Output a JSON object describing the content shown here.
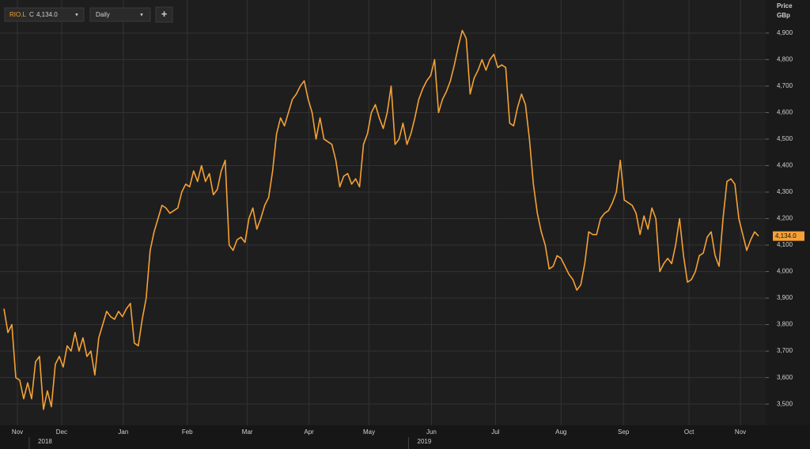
{
  "toolbar": {
    "symbol": "RIO.L",
    "field": "C",
    "interval": "Daily",
    "add": "+"
  },
  "chart_data": {
    "type": "line",
    "y_axis_title": "Price",
    "y_axis_unit": "GBp",
    "last_value_label": "4,134.0",
    "series": [
      {
        "name": "RIO.L",
        "color": "#f5a135",
        "values": [
          3860,
          3770,
          3800,
          3600,
          3590,
          3520,
          3580,
          3520,
          3660,
          3680,
          3480,
          3550,
          3490,
          3650,
          3680,
          3640,
          3720,
          3700,
          3770,
          3700,
          3750,
          3680,
          3700,
          3610,
          3750,
          3800,
          3850,
          3830,
          3820,
          3850,
          3830,
          3860,
          3880,
          3730,
          3720,
          3820,
          3900,
          4080,
          4150,
          4200,
          4250,
          4240,
          4220,
          4230,
          4240,
          4300,
          4330,
          4320,
          4380,
          4340,
          4400,
          4340,
          4370,
          4290,
          4310,
          4380,
          4420,
          4100,
          4080,
          4120,
          4130,
          4110,
          4200,
          4240,
          4160,
          4200,
          4250,
          4280,
          4380,
          4520,
          4580,
          4550,
          4600,
          4650,
          4670,
          4700,
          4720,
          4650,
          4600,
          4500,
          4580,
          4500,
          4490,
          4480,
          4420,
          4320,
          4360,
          4370,
          4330,
          4350,
          4320,
          4480,
          4520,
          4600,
          4630,
          4580,
          4540,
          4600,
          4700,
          4480,
          4500,
          4560,
          4480,
          4520,
          4580,
          4650,
          4690,
          4720,
          4740,
          4800,
          4600,
          4650,
          4680,
          4720,
          4780,
          4850,
          4910,
          4880,
          4670,
          4730,
          4760,
          4800,
          4760,
          4800,
          4820,
          4770,
          4780,
          4770,
          4560,
          4550,
          4620,
          4670,
          4630,
          4500,
          4330,
          4220,
          4150,
          4100,
          4010,
          4020,
          4060,
          4050,
          4020,
          3990,
          3970,
          3930,
          3950,
          4030,
          4150,
          4140,
          4140,
          4200,
          4220,
          4230,
          4260,
          4300,
          4420,
          4270,
          4260,
          4250,
          4220,
          4140,
          4210,
          4160,
          4240,
          4200,
          4000,
          4030,
          4050,
          4030,
          4100,
          4200,
          4060,
          3960,
          3970,
          4000,
          4060,
          4070,
          4130,
          4150,
          4060,
          4020,
          4200,
          4340,
          4350,
          4330,
          4200,
          4140,
          4080,
          4120,
          4150,
          4134
        ]
      }
    ],
    "xlim": [
      0,
      191
    ],
    "xticks": [
      {
        "value": 3.4,
        "label": "Nov"
      },
      {
        "value": 14.6,
        "label": "Dec"
      },
      {
        "value": 30.2,
        "label": "Jan"
      },
      {
        "value": 46.4,
        "label": "Feb"
      },
      {
        "value": 61.6,
        "label": "Mar"
      },
      {
        "value": 77.2,
        "label": "Apr"
      },
      {
        "value": 92.4,
        "label": "May"
      },
      {
        "value": 108.2,
        "label": "Jun"
      },
      {
        "value": 124.4,
        "label": "Jul"
      },
      {
        "value": 141,
        "label": "Aug"
      },
      {
        "value": 156.8,
        "label": "Sep"
      },
      {
        "value": 173.4,
        "label": "Oct"
      },
      {
        "value": 186.4,
        "label": "Nov"
      }
    ],
    "year_ticks": [
      {
        "value": 10.4,
        "label": "2018"
      },
      {
        "value": 106.4,
        "label": "2019"
      }
    ],
    "ylim": [
      3420,
      5010
    ],
    "yticks": [
      {
        "value": 3500,
        "label": "3,500"
      },
      {
        "value": 3600,
        "label": "3,600"
      },
      {
        "value": 3700,
        "label": "3,700"
      },
      {
        "value": 3800,
        "label": "3,800"
      },
      {
        "value": 3900,
        "label": "3,900"
      },
      {
        "value": 4000,
        "label": "4,000"
      },
      {
        "value": 4100,
        "label": "4,100"
      },
      {
        "value": 4200,
        "label": "4,200"
      },
      {
        "value": 4300,
        "label": "4,300"
      },
      {
        "value": 4400,
        "label": "4,400"
      },
      {
        "value": 4500,
        "label": "4,500"
      },
      {
        "value": 4600,
        "label": "4,600"
      },
      {
        "value": 4700,
        "label": "4,700"
      },
      {
        "value": 4800,
        "label": "4,800"
      },
      {
        "value": 4900,
        "label": "4,900"
      }
    ],
    "grid": true
  }
}
